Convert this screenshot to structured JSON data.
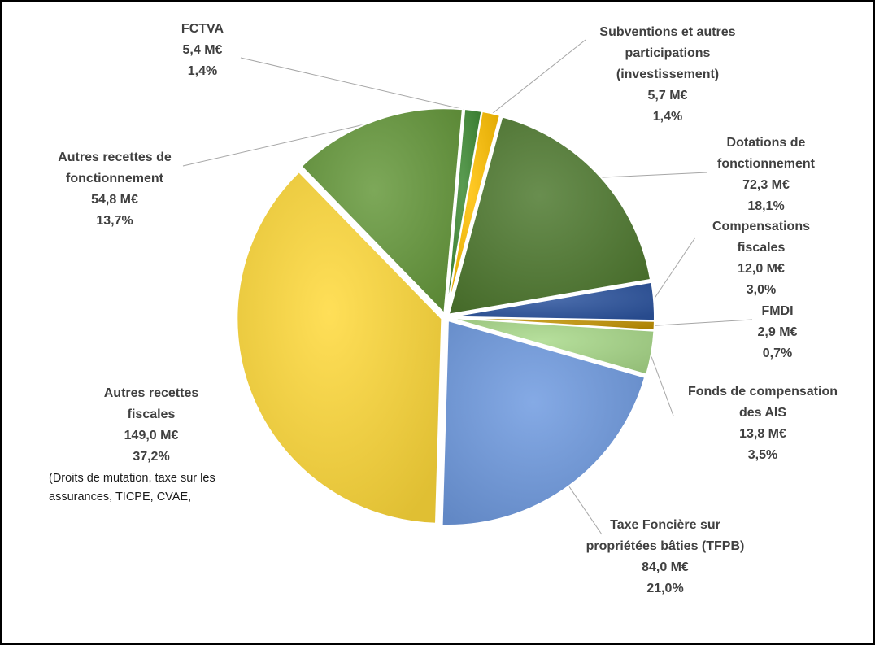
{
  "chart_data": {
    "type": "pie",
    "unit": "M€",
    "slices": [
      {
        "label_lines": [
          "Subventions et autres",
          "participations",
          "(investissement)"
        ],
        "value": 5.7,
        "value_text": "5,7 M€",
        "percent_text": "1,4%",
        "color": "#FFC000"
      },
      {
        "label_lines": [
          "Dotations de",
          "fonctionnement"
        ],
        "value": 72.3,
        "value_text": "72,3 M€",
        "percent_text": "18,1%",
        "color": "#4F7A30"
      },
      {
        "label_lines": [
          "Compensations",
          "fiscales"
        ],
        "value": 12.0,
        "value_text": "12,0 M€",
        "percent_text": "3,0%",
        "color": "#2E55A0"
      },
      {
        "label_lines": [
          "FMDI"
        ],
        "value": 2.9,
        "value_text": "2,9 M€",
        "percent_text": "0,7%",
        "color": "#C09000"
      },
      {
        "label_lines": [
          "Fonds de compensation",
          "des AIS"
        ],
        "value": 13.8,
        "value_text": "13,8 M€",
        "percent_text": "3,5%",
        "color": "#A9D98A"
      },
      {
        "label_lines": [
          "Taxe Foncière sur",
          "propriétées  bâties (TFPB)"
        ],
        "value": 84.0,
        "value_text": "84,0 M€",
        "percent_text": "21,0%",
        "color": "#6F9BE0"
      },
      {
        "label_lines": [
          "Autres recettes",
          "fiscales"
        ],
        "value": 149.0,
        "value_text": "149,0 M€",
        "percent_text": "37,2%",
        "color": "#FFD93A",
        "note_lines": [
          "(Droits de mutation, taxe sur les",
          "assurances, TICPE, CVAE,"
        ]
      },
      {
        "label_lines": [
          "Autres  recettes  de",
          "fonctionnement"
        ],
        "value": 54.8,
        "value_text": "54,8 M€",
        "percent_text": "13,7%",
        "color": "#66993C"
      },
      {
        "label_lines": [
          "FCTVA"
        ],
        "value": 5.4,
        "value_text": "5,4 M€",
        "percent_text": "1,4%",
        "color": "#3E8B34"
      }
    ]
  }
}
